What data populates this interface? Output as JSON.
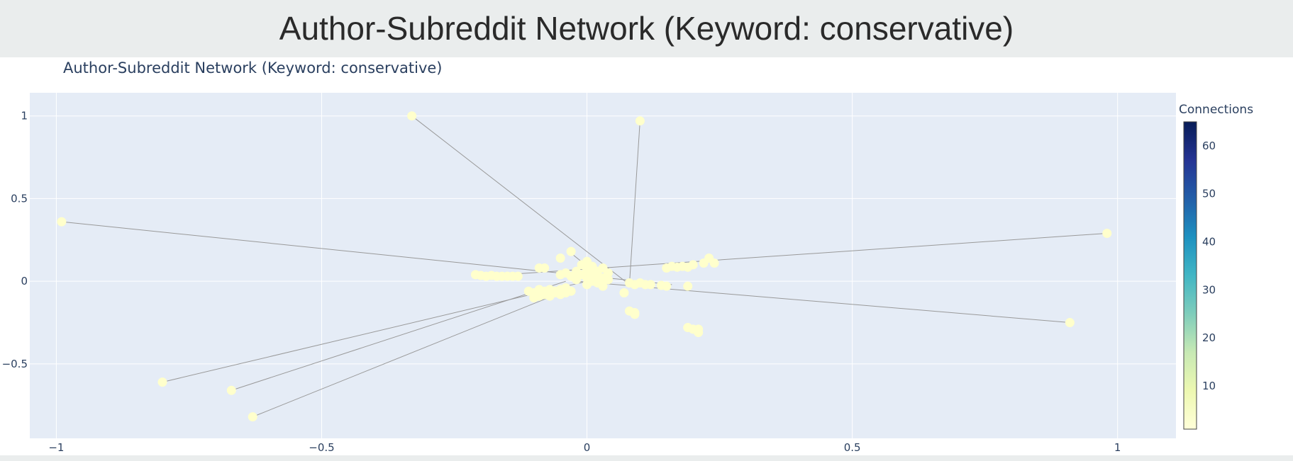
{
  "page": {
    "title": "Author-Subreddit Network (Keyword: conservative)"
  },
  "chart_data": {
    "type": "scatter",
    "title": "Author-Subreddit Network (Keyword: conservative)",
    "xlabel": "",
    "ylabel": "",
    "xlim": [
      -1.05,
      1.11
    ],
    "ylim": [
      -0.95,
      1.14
    ],
    "x_ticks": [
      {
        "value": -1,
        "label": "−1"
      },
      {
        "value": -0.5,
        "label": "−0.5"
      },
      {
        "value": 0,
        "label": "0"
      },
      {
        "value": 0.5,
        "label": "0.5"
      },
      {
        "value": 1,
        "label": "1"
      }
    ],
    "y_ticks": [
      {
        "value": 1,
        "label": "1"
      },
      {
        "value": 0.5,
        "label": "0.5"
      },
      {
        "value": 0,
        "label": "0"
      },
      {
        "value": -0.5,
        "label": "−0.5"
      }
    ],
    "grid": true,
    "colorbar": {
      "title": "Connections",
      "min": 1,
      "max": 65,
      "tick_values": [
        10,
        20,
        30,
        40,
        50,
        60
      ],
      "tick_labels": [
        "10",
        "20",
        "30",
        "40",
        "50",
        "60"
      ],
      "colorscale": [
        "#ffffd9",
        "#edf8b1",
        "#c7e9b4",
        "#7fcdbb",
        "#41b6c4",
        "#1d91c0",
        "#225ea8",
        "#253494",
        "#081d58"
      ]
    },
    "marker_color": "#ffffcc",
    "edge_color": "#999999",
    "edges": [
      [
        [
          -0.99,
          0.36
        ],
        [
          0.16,
          -0.02
        ]
      ],
      [
        [
          -0.33,
          1.0
        ],
        [
          0.08,
          -0.02
        ]
      ],
      [
        [
          0.1,
          0.97
        ],
        [
          0.08,
          -0.02
        ]
      ],
      [
        [
          0.98,
          0.29
        ],
        [
          -0.2,
          0.03
        ]
      ],
      [
        [
          0.91,
          -0.25
        ],
        [
          -0.02,
          0.0
        ]
      ],
      [
        [
          -0.8,
          -0.61
        ],
        [
          0.0,
          0.0
        ]
      ],
      [
        [
          -0.67,
          -0.66
        ],
        [
          -0.04,
          0.0
        ]
      ],
      [
        [
          -0.63,
          -0.82
        ],
        [
          -0.05,
          -0.07
        ]
      ],
      [
        [
          -0.03,
          0.17
        ],
        [
          0.02,
          0.04
        ]
      ],
      [
        [
          0.03,
          0.08
        ],
        [
          -0.04,
          0.05
        ]
      ]
    ],
    "points": [
      {
        "x": -0.99,
        "y": 0.36
      },
      {
        "x": -0.33,
        "y": 1.0
      },
      {
        "x": 0.1,
        "y": 0.97
      },
      {
        "x": 0.98,
        "y": 0.29
      },
      {
        "x": 0.91,
        "y": -0.25
      },
      {
        "x": -0.8,
        "y": -0.61
      },
      {
        "x": -0.67,
        "y": -0.66
      },
      {
        "x": -0.63,
        "y": -0.82
      },
      {
        "x": -0.21,
        "y": 0.04
      },
      {
        "x": -0.2,
        "y": 0.035
      },
      {
        "x": -0.19,
        "y": 0.03
      },
      {
        "x": -0.18,
        "y": 0.035
      },
      {
        "x": -0.17,
        "y": 0.03
      },
      {
        "x": -0.16,
        "y": 0.03
      },
      {
        "x": -0.15,
        "y": 0.03
      },
      {
        "x": -0.14,
        "y": 0.03
      },
      {
        "x": -0.13,
        "y": 0.03
      },
      {
        "x": -0.09,
        "y": 0.08
      },
      {
        "x": -0.08,
        "y": 0.08
      },
      {
        "x": -0.05,
        "y": 0.14
      },
      {
        "x": -0.03,
        "y": 0.18
      },
      {
        "x": -0.11,
        "y": -0.06
      },
      {
        "x": -0.1,
        "y": -0.07
      },
      {
        "x": -0.1,
        "y": -0.1
      },
      {
        "x": -0.09,
        "y": -0.05
      },
      {
        "x": -0.09,
        "y": -0.09
      },
      {
        "x": -0.08,
        "y": -0.06
      },
      {
        "x": -0.08,
        "y": -0.08
      },
      {
        "x": -0.07,
        "y": -0.05
      },
      {
        "x": -0.07,
        "y": -0.09
      },
      {
        "x": -0.06,
        "y": -0.07
      },
      {
        "x": -0.06,
        "y": -0.06
      },
      {
        "x": -0.05,
        "y": -0.08
      },
      {
        "x": -0.05,
        "y": -0.05
      },
      {
        "x": -0.04,
        "y": -0.07
      },
      {
        "x": -0.04,
        "y": -0.04
      },
      {
        "x": -0.03,
        "y": -0.06
      },
      {
        "x": -0.05,
        "y": 0.04
      },
      {
        "x": -0.04,
        "y": 0.05
      },
      {
        "x": -0.03,
        "y": 0.03
      },
      {
        "x": -0.02,
        "y": 0.06
      },
      {
        "x": -0.02,
        "y": 0.01
      },
      {
        "x": -0.01,
        "y": 0.1
      },
      {
        "x": -0.01,
        "y": 0.04
      },
      {
        "x": 0.0,
        "y": 0.12
      },
      {
        "x": 0.0,
        "y": 0.07
      },
      {
        "x": 0.0,
        "y": 0.02
      },
      {
        "x": 0.0,
        "y": -0.02
      },
      {
        "x": 0.01,
        "y": 0.05
      },
      {
        "x": 0.01,
        "y": 0.0
      },
      {
        "x": 0.01,
        "y": 0.09
      },
      {
        "x": 0.02,
        "y": 0.03
      },
      {
        "x": 0.02,
        "y": -0.01
      },
      {
        "x": 0.02,
        "y": 0.06
      },
      {
        "x": 0.03,
        "y": 0.02
      },
      {
        "x": 0.03,
        "y": -0.03
      },
      {
        "x": 0.04,
        "y": 0.01
      },
      {
        "x": 0.04,
        "y": 0.05
      },
      {
        "x": 0.03,
        "y": 0.08
      },
      {
        "x": 0.07,
        "y": -0.07
      },
      {
        "x": 0.08,
        "y": -0.01
      },
      {
        "x": 0.09,
        "y": -0.02
      },
      {
        "x": 0.1,
        "y": -0.01
      },
      {
        "x": 0.11,
        "y": -0.02
      },
      {
        "x": 0.12,
        "y": -0.02
      },
      {
        "x": 0.14,
        "y": -0.025
      },
      {
        "x": 0.15,
        "y": 0.08
      },
      {
        "x": 0.16,
        "y": 0.09
      },
      {
        "x": 0.17,
        "y": 0.085
      },
      {
        "x": 0.18,
        "y": 0.09
      },
      {
        "x": 0.19,
        "y": 0.085
      },
      {
        "x": 0.2,
        "y": 0.1
      },
      {
        "x": 0.22,
        "y": 0.11
      },
      {
        "x": 0.23,
        "y": 0.14
      },
      {
        "x": 0.24,
        "y": 0.11
      },
      {
        "x": 0.19,
        "y": -0.03
      },
      {
        "x": 0.15,
        "y": -0.03
      },
      {
        "x": 0.08,
        "y": -0.18
      },
      {
        "x": 0.09,
        "y": -0.2
      },
      {
        "x": 0.09,
        "y": -0.19
      },
      {
        "x": 0.19,
        "y": -0.28
      },
      {
        "x": 0.2,
        "y": -0.29
      },
      {
        "x": 0.21,
        "y": -0.29
      },
      {
        "x": 0.21,
        "y": -0.31
      }
    ]
  }
}
